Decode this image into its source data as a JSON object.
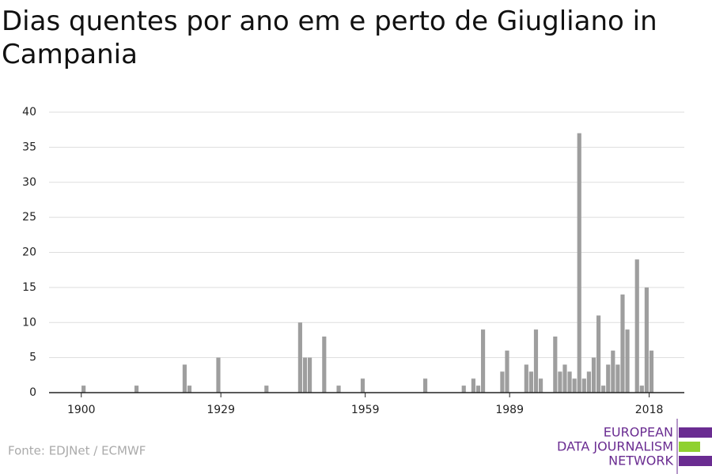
{
  "chart_data": {
    "type": "bar",
    "title": "Dias quentes por ano em e perto de Giugliano in Campania",
    "x": [
      1900,
      1911,
      1921,
      1922,
      1928,
      1938,
      1945,
      1946,
      1947,
      1950,
      1953,
      1958,
      1971,
      1979,
      1981,
      1982,
      1983,
      1987,
      1988,
      1992,
      1993,
      1994,
      1995,
      1998,
      1999,
      2000,
      2001,
      2002,
      2003,
      2004,
      2005,
      2006,
      2007,
      2008,
      2009,
      2010,
      2011,
      2012,
      2013,
      2015,
      2016,
      2017,
      2018
    ],
    "values": [
      1,
      1,
      4,
      1,
      5,
      1,
      10,
      5,
      5,
      8,
      1,
      2,
      2,
      1,
      2,
      1,
      9,
      3,
      6,
      4,
      3,
      9,
      2,
      8,
      3,
      4,
      3,
      2,
      37,
      2,
      3,
      5,
      11,
      1,
      4,
      6,
      4,
      14,
      9,
      19,
      1,
      15,
      6
    ],
    "color": "#9e9e9e",
    "xlim": [
      1893.3,
      2025.3
    ],
    "xticks": [
      1900,
      1929,
      1959,
      1989,
      2018
    ],
    "ylim": [
      0,
      40
    ],
    "yticks": [
      0,
      5,
      10,
      15,
      20,
      25,
      30,
      35,
      40
    ],
    "grid": true,
    "source": "Fonte: EDJNet / ECMWF",
    "logo": [
      "EUROPEAN",
      "DATA JOURNALISM",
      "NETWORK"
    ]
  }
}
